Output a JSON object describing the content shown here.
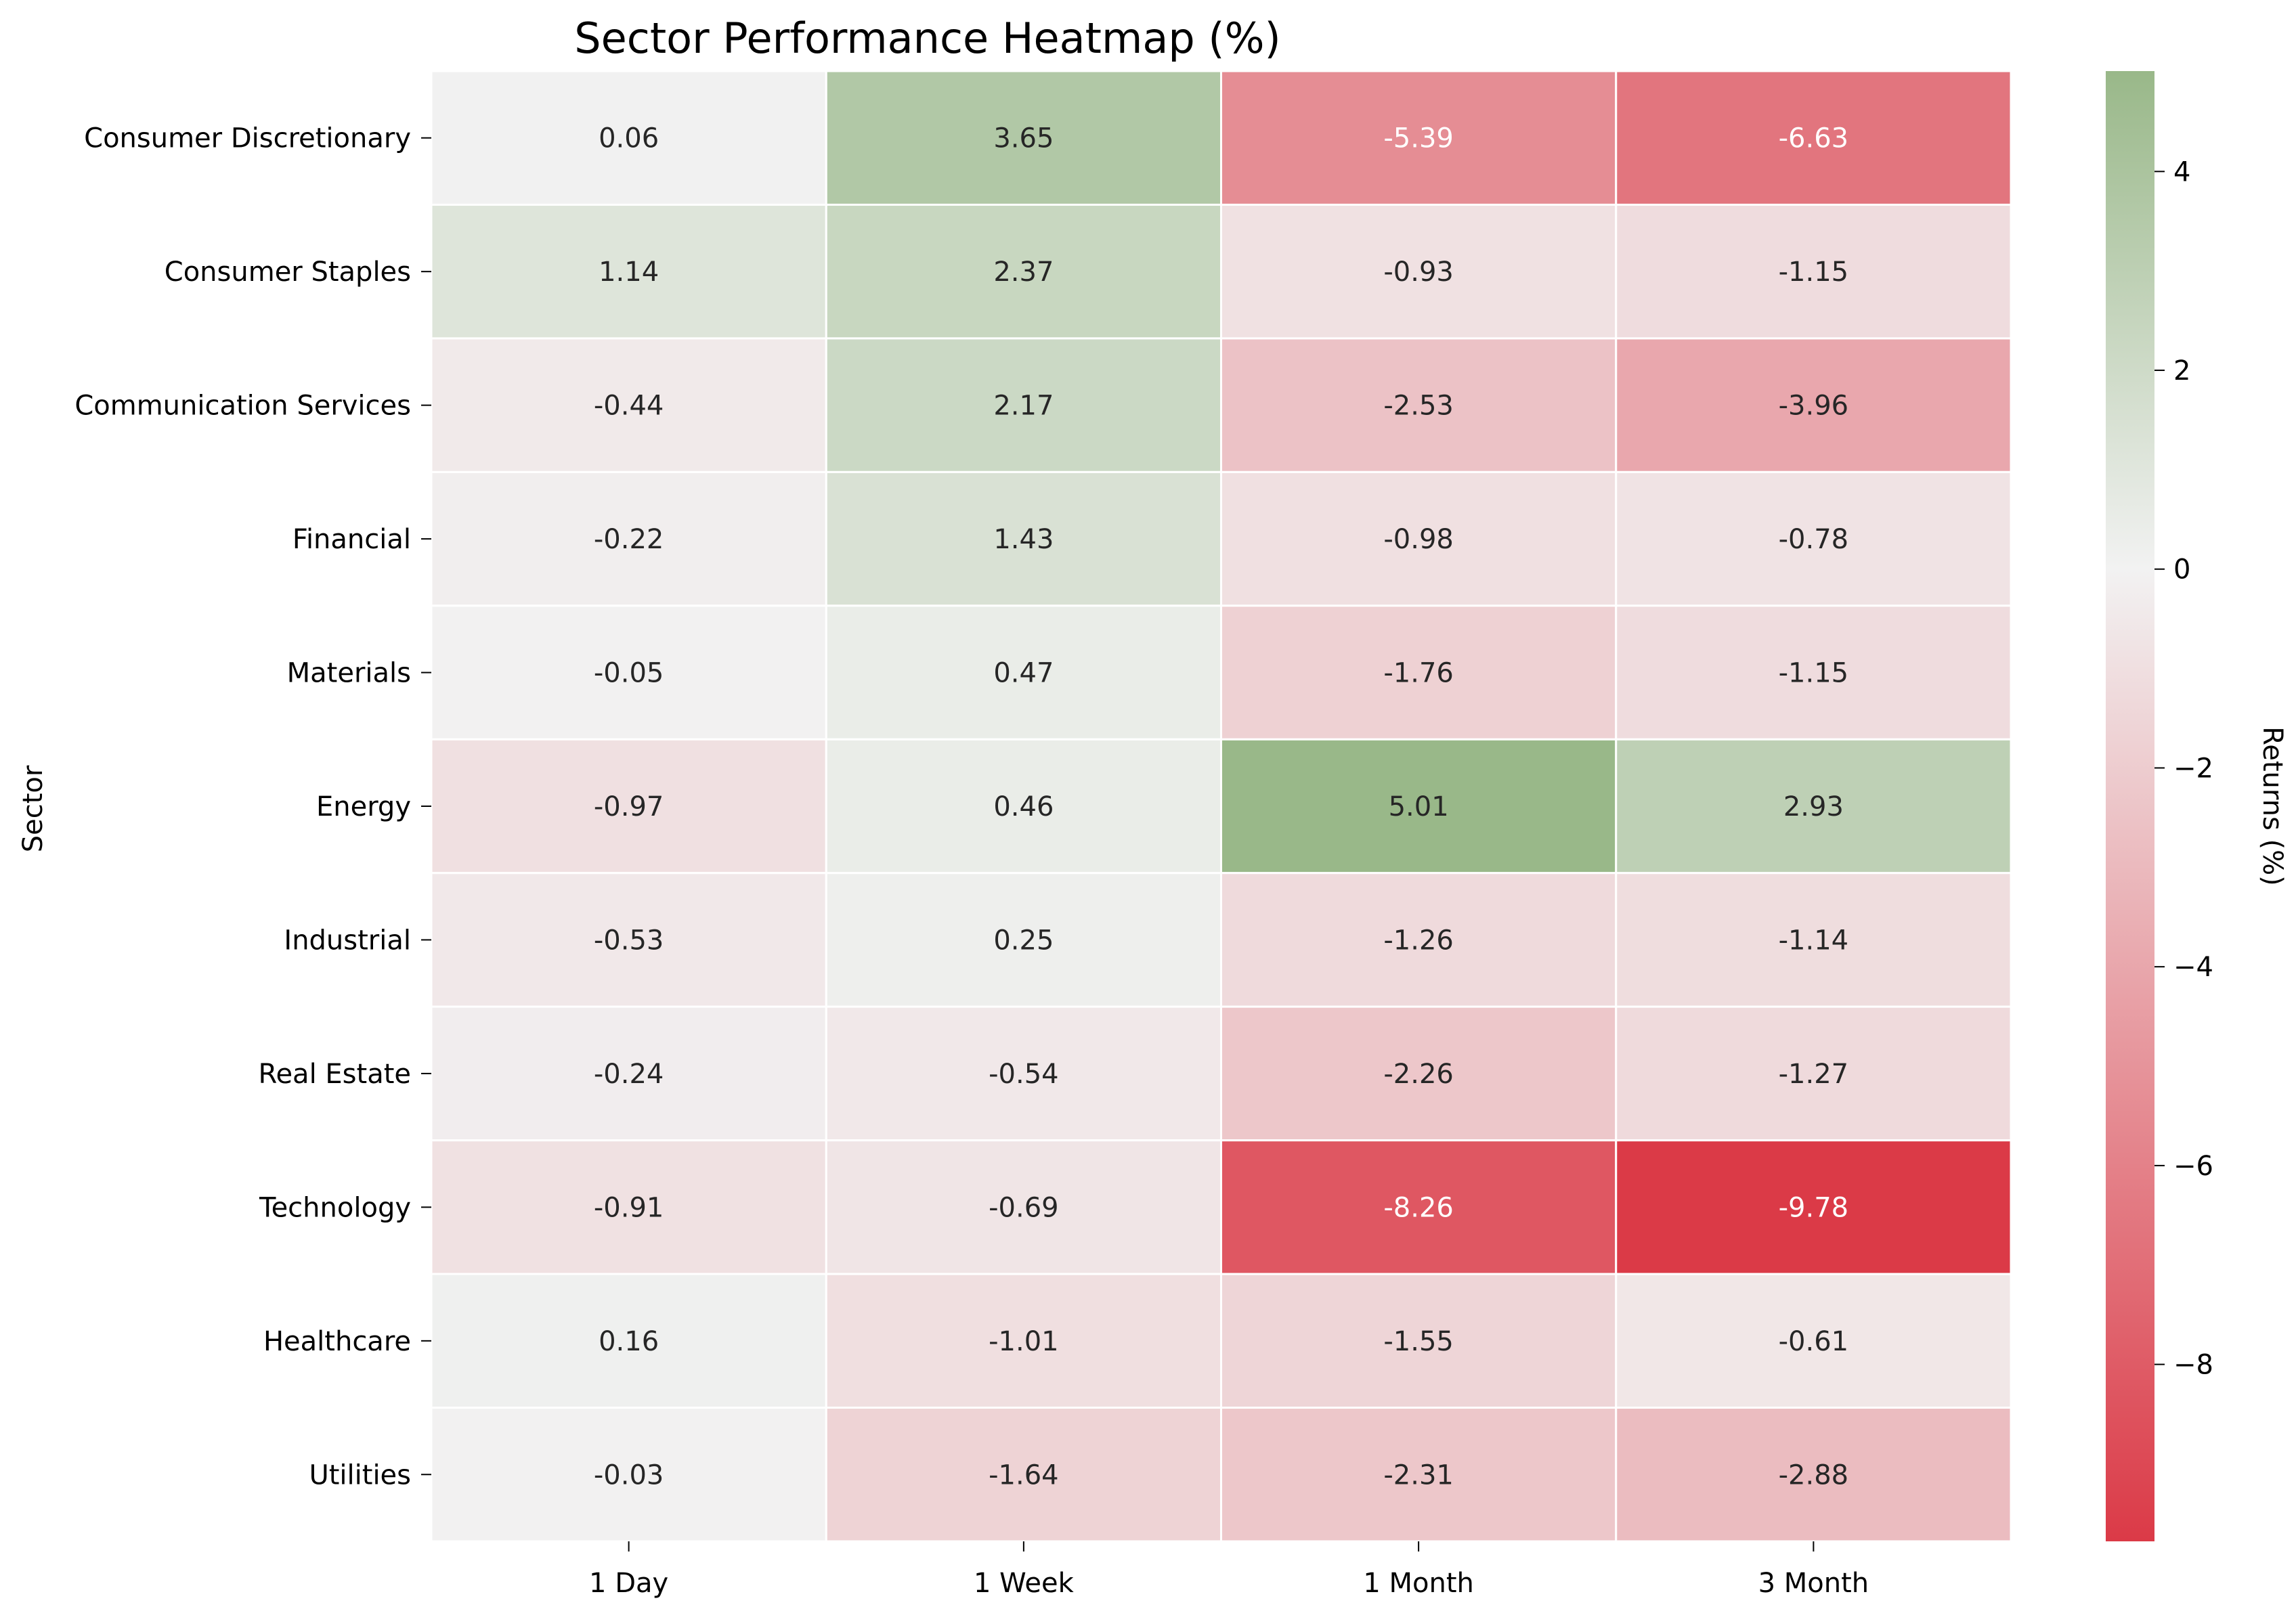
{
  "chart_data": {
    "type": "heatmap",
    "title": "Sector Performance Heatmap (%)",
    "ylabel": "Sector",
    "xlabel": "",
    "columns": [
      "1 Day",
      "1 Week",
      "1 Month",
      "3 Month"
    ],
    "rows": [
      "Consumer Discretionary",
      "Consumer Staples",
      "Communication Services",
      "Financial",
      "Materials",
      "Energy",
      "Industrial",
      "Real Estate",
      "Technology",
      "Healthcare",
      "Utilities"
    ],
    "values": [
      [
        0.06,
        3.65,
        -5.39,
        -6.63
      ],
      [
        1.14,
        2.37,
        -0.93,
        -1.15
      ],
      [
        -0.44,
        2.17,
        -2.53,
        -3.96
      ],
      [
        -0.22,
        1.43,
        -0.98,
        -0.78
      ],
      [
        -0.05,
        0.47,
        -1.76,
        -1.15
      ],
      [
        -0.97,
        0.46,
        5.01,
        2.93
      ],
      [
        -0.53,
        0.25,
        -1.26,
        -1.14
      ],
      [
        -0.24,
        -0.54,
        -2.26,
        -1.27
      ],
      [
        -0.91,
        -0.69,
        -8.26,
        -9.78
      ],
      [
        0.16,
        -1.01,
        -1.55,
        -0.61
      ],
      [
        -0.03,
        -1.64,
        -2.31,
        -2.88
      ]
    ],
    "value_labels": [
      [
        "0.06",
        "3.65",
        "-5.39",
        "-6.63"
      ],
      [
        "1.14",
        "2.37",
        "-0.93",
        "-1.15"
      ],
      [
        "-0.44",
        "2.17",
        "-2.53",
        "-3.96"
      ],
      [
        "-0.22",
        "1.43",
        "-0.98",
        "-0.78"
      ],
      [
        "-0.05",
        "0.47",
        "-1.76",
        "-1.15"
      ],
      [
        "-0.97",
        "0.46",
        "5.01",
        "2.93"
      ],
      [
        "-0.53",
        "0.25",
        "-1.26",
        "-1.14"
      ],
      [
        "-0.24",
        "-0.54",
        "-2.26",
        "-1.27"
      ],
      [
        "-0.91",
        "-0.69",
        "-8.26",
        "-9.78"
      ],
      [
        "0.16",
        "-1.01",
        "-1.55",
        "-0.61"
      ],
      [
        "-0.03",
        "-1.64",
        "-2.31",
        "-2.88"
      ]
    ],
    "colorbar": {
      "label": "Returns (%)",
      "range": [
        -9.78,
        5.01
      ],
      "ticks": [
        4,
        2,
        0,
        -2,
        -4,
        -6,
        -8
      ],
      "tick_labels": [
        "4",
        "2",
        "0",
        "−2",
        "−4",
        "−6",
        "−8"
      ],
      "color_negative": "#db3a47",
      "color_zero": "#f2f2f2",
      "color_positive": "#99b889"
    },
    "grid": false,
    "legend": "colorbar-right"
  }
}
